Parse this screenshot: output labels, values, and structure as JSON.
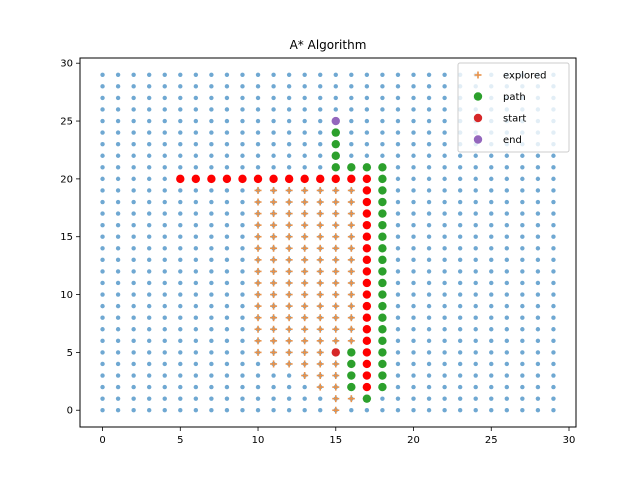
{
  "chart_data": {
    "type": "scatter",
    "title": "A* Algorithm",
    "xlabel": "",
    "ylabel": "",
    "xlim": [
      -1.45,
      30.45
    ],
    "ylim": [
      -1.45,
      30.45
    ],
    "xticks": [
      0,
      5,
      10,
      15,
      20,
      25,
      30
    ],
    "yticks": [
      0,
      5,
      10,
      15,
      20,
      25,
      30
    ],
    "legend_position": "top-right",
    "grid": false,
    "grid_points": {
      "x_range": [
        0,
        29
      ],
      "y_range": [
        0,
        29
      ],
      "color": "#6fa8d2"
    },
    "walls": {
      "color": "#ff0000",
      "horizontal": {
        "y": 20,
        "x_from": 5,
        "x_to": 17
      },
      "vertical": {
        "x": 17,
        "y_from": 2,
        "y_to": 20
      }
    },
    "series": [
      {
        "name": "explored",
        "marker": "plus",
        "color": "#e8924a",
        "points": [
          [
            10,
            5
          ],
          [
            10,
            6
          ],
          [
            10,
            7
          ],
          [
            10,
            8
          ],
          [
            10,
            9
          ],
          [
            10,
            10
          ],
          [
            10,
            11
          ],
          [
            10,
            12
          ],
          [
            10,
            13
          ],
          [
            10,
            14
          ],
          [
            10,
            15
          ],
          [
            10,
            16
          ],
          [
            10,
            17
          ],
          [
            10,
            18
          ],
          [
            10,
            19
          ],
          [
            11,
            4
          ],
          [
            11,
            5
          ],
          [
            11,
            6
          ],
          [
            11,
            7
          ],
          [
            11,
            8
          ],
          [
            11,
            9
          ],
          [
            11,
            10
          ],
          [
            11,
            11
          ],
          [
            11,
            12
          ],
          [
            11,
            13
          ],
          [
            11,
            14
          ],
          [
            11,
            15
          ],
          [
            11,
            16
          ],
          [
            11,
            17
          ],
          [
            11,
            18
          ],
          [
            11,
            19
          ],
          [
            12,
            4
          ],
          [
            12,
            5
          ],
          [
            12,
            6
          ],
          [
            12,
            7
          ],
          [
            12,
            8
          ],
          [
            12,
            9
          ],
          [
            12,
            10
          ],
          [
            12,
            11
          ],
          [
            12,
            12
          ],
          [
            12,
            13
          ],
          [
            12,
            14
          ],
          [
            12,
            15
          ],
          [
            12,
            16
          ],
          [
            12,
            17
          ],
          [
            12,
            18
          ],
          [
            12,
            19
          ],
          [
            13,
            3
          ],
          [
            13,
            4
          ],
          [
            13,
            5
          ],
          [
            13,
            6
          ],
          [
            13,
            7
          ],
          [
            13,
            8
          ],
          [
            13,
            9
          ],
          [
            13,
            10
          ],
          [
            13,
            11
          ],
          [
            13,
            12
          ],
          [
            13,
            13
          ],
          [
            13,
            14
          ],
          [
            13,
            15
          ],
          [
            13,
            16
          ],
          [
            13,
            17
          ],
          [
            13,
            18
          ],
          [
            13,
            19
          ],
          [
            14,
            2
          ],
          [
            14,
            3
          ],
          [
            14,
            4
          ],
          [
            14,
            5
          ],
          [
            14,
            6
          ],
          [
            14,
            7
          ],
          [
            14,
            8
          ],
          [
            14,
            9
          ],
          [
            14,
            10
          ],
          [
            14,
            11
          ],
          [
            14,
            12
          ],
          [
            14,
            13
          ],
          [
            14,
            14
          ],
          [
            14,
            15
          ],
          [
            14,
            16
          ],
          [
            14,
            17
          ],
          [
            14,
            18
          ],
          [
            14,
            19
          ],
          [
            15,
            0
          ],
          [
            15,
            1
          ],
          [
            15,
            2
          ],
          [
            15,
            3
          ],
          [
            15,
            4
          ],
          [
            15,
            6
          ],
          [
            15,
            7
          ],
          [
            15,
            8
          ],
          [
            15,
            9
          ],
          [
            15,
            10
          ],
          [
            15,
            11
          ],
          [
            15,
            12
          ],
          [
            15,
            13
          ],
          [
            15,
            14
          ],
          [
            15,
            15
          ],
          [
            15,
            16
          ],
          [
            15,
            17
          ],
          [
            15,
            18
          ],
          [
            15,
            19
          ],
          [
            16,
            1
          ],
          [
            16,
            6
          ],
          [
            16,
            7
          ],
          [
            16,
            8
          ],
          [
            16,
            9
          ],
          [
            16,
            10
          ],
          [
            16,
            11
          ],
          [
            16,
            12
          ],
          [
            16,
            13
          ],
          [
            16,
            14
          ],
          [
            16,
            15
          ],
          [
            16,
            16
          ],
          [
            16,
            17
          ],
          [
            16,
            18
          ],
          [
            16,
            19
          ]
        ]
      },
      {
        "name": "path",
        "marker": "circle",
        "color": "#2ca02c",
        "points": [
          [
            16,
            5
          ],
          [
            16,
            4
          ],
          [
            16,
            3
          ],
          [
            16,
            2
          ],
          [
            17,
            1
          ],
          [
            18,
            2
          ],
          [
            18,
            3
          ],
          [
            18,
            4
          ],
          [
            18,
            5
          ],
          [
            18,
            6
          ],
          [
            18,
            7
          ],
          [
            18,
            8
          ],
          [
            18,
            9
          ],
          [
            18,
            10
          ],
          [
            18,
            11
          ],
          [
            18,
            12
          ],
          [
            18,
            13
          ],
          [
            18,
            14
          ],
          [
            18,
            15
          ],
          [
            18,
            16
          ],
          [
            18,
            17
          ],
          [
            18,
            18
          ],
          [
            18,
            19
          ],
          [
            18,
            20
          ],
          [
            18,
            21
          ],
          [
            17,
            21
          ],
          [
            16,
            21
          ],
          [
            15,
            21
          ],
          [
            15,
            22
          ],
          [
            15,
            23
          ],
          [
            15,
            24
          ]
        ]
      },
      {
        "name": "start",
        "marker": "circle",
        "color": "#d62728",
        "points": [
          [
            15,
            5
          ]
        ]
      },
      {
        "name": "end",
        "marker": "circle",
        "color": "#9467bd",
        "points": [
          [
            15,
            25
          ]
        ]
      }
    ]
  }
}
